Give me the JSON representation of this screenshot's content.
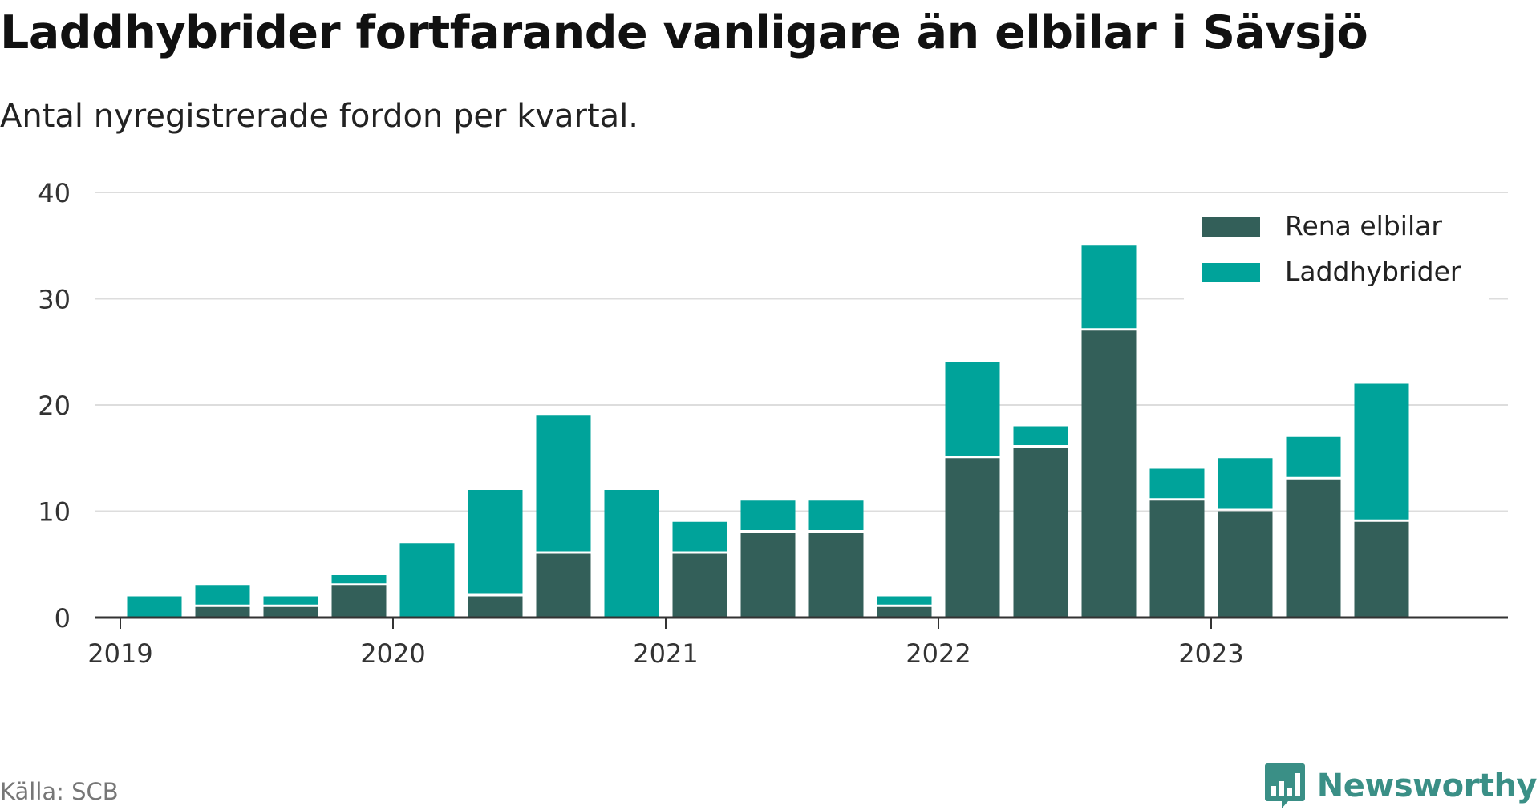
{
  "title": "Laddhybrider fortfarande vanligare än elbilar i Sävsjö",
  "subtitle": "Antal nyregistrerade fordon per kvartal.",
  "source": "Källa: SCB",
  "brand": {
    "name": "Newsworthy",
    "icon": "newsworthy-logo-icon"
  },
  "colors": {
    "elbilar": "#335f59",
    "laddhybrider": "#00a39a",
    "grid": "#dddddd",
    "axis": "#333333",
    "brand": "#3a8f86"
  },
  "chart_data": {
    "type": "bar",
    "stacked": true,
    "categories": [
      "2019 Q1",
      "2019 Q2",
      "2019 Q3",
      "2019 Q4",
      "2020 Q1",
      "2020 Q2",
      "2020 Q3",
      "2020 Q4",
      "2021 Q1",
      "2021 Q2",
      "2021 Q3",
      "2021 Q4",
      "2022 Q1",
      "2022 Q2",
      "2022 Q3",
      "2022 Q4",
      "2023 Q1",
      "2023 Q2",
      "2023 Q3",
      "2023 Q4"
    ],
    "series": [
      {
        "name": "Rena elbilar",
        "color": "#335f59",
        "values": [
          0,
          1,
          1,
          3,
          0,
          2,
          6,
          0,
          6,
          8,
          8,
          1,
          15,
          16,
          27,
          11,
          10,
          13,
          9,
          0
        ]
      },
      {
        "name": "Laddhybrider",
        "color": "#00a39a",
        "values": [
          2,
          2,
          1,
          1,
          7,
          10,
          13,
          12,
          3,
          3,
          3,
          1,
          9,
          2,
          8,
          3,
          5,
          4,
          13,
          0
        ]
      }
    ],
    "x_tick_labels": [
      "2019",
      "2020",
      "2021",
      "2022",
      "2023"
    ],
    "y_ticks": [
      0,
      10,
      20,
      30,
      40
    ],
    "ylim": [
      0,
      40
    ],
    "grid": true,
    "legend_position": "top-right"
  }
}
